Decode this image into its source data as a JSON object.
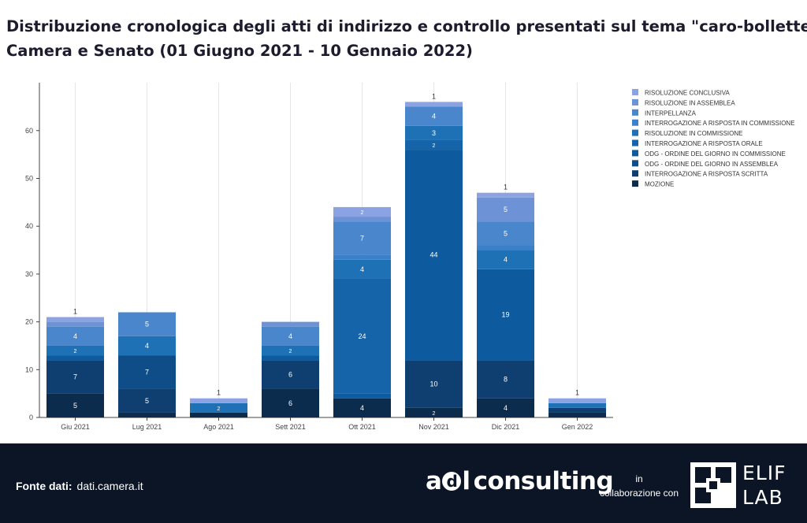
{
  "title": {
    "line1": "Distribuzione cronologica degli atti di indirizzo e controllo presentati sul tema \"caro-bollette\"",
    "line2": "Camera e Senato (01 Giugno 2021 - 10 Gennaio 2022)"
  },
  "footer": {
    "source_label": "Fonte dati:",
    "source_value": "dati.camera.it",
    "brand_a": "a",
    "brand_d": "d",
    "brand_l": "l",
    "brand_rest": "consulting",
    "collab_line1": "in",
    "collab_line2": "collaborazione con",
    "partner_line1": "ELIF",
    "partner_line2": "LAB"
  },
  "chart_data": {
    "type": "bar",
    "stacked": true,
    "categories": [
      "Giu 2021",
      "Lug 2021",
      "Ago 2021",
      "Sett 2021",
      "Ott 2021",
      "Nov 2021",
      "Dic 2021",
      "Gen 2022"
    ],
    "ylim": [
      0,
      70
    ],
    "yticks": [
      0,
      10,
      20,
      30,
      40,
      50,
      60
    ],
    "grid": "vertical",
    "legend_position": "top-right",
    "series": [
      {
        "name": "MOZIONE",
        "color": "#0b2c4d",
        "values": [
          5,
          1,
          1,
          6,
          4,
          2,
          4,
          1
        ]
      },
      {
        "name": "INTERROGAZIONE A RISPOSTA SCRITTA",
        "color": "#0e3f70",
        "values": [
          7,
          5,
          0,
          6,
          0,
          10,
          8,
          1
        ]
      },
      {
        "name": "ODG - ORDINE DEL GIORNO IN ASSEMBLEA",
        "color": "#0f4d88",
        "values": [
          0,
          7,
          0,
          0,
          0,
          0,
          0,
          0
        ]
      },
      {
        "name": "ODG - ORDINE DEL GIORNO IN COMMISSIONE",
        "color": "#0d5a9e",
        "values": [
          1,
          0,
          0,
          1,
          1,
          44,
          19,
          0
        ]
      },
      {
        "name": "INTERROGAZIONE A RISPOSTA ORALE",
        "color": "#1564a9",
        "values": [
          0,
          0,
          0,
          0,
          24,
          2,
          0,
          0
        ]
      },
      {
        "name": "RISOLUZIONE IN COMMISSIONE",
        "color": "#1f71b6",
        "values": [
          2,
          4,
          2,
          2,
          4,
          3,
          4,
          1
        ]
      },
      {
        "name": "INTERROGAZIONE A RISPOSTA IN COMMISSIONE",
        "color": "#3b80c8",
        "values": [
          0,
          0,
          0,
          0,
          1,
          0,
          1,
          0
        ]
      },
      {
        "name": "INTERPELLANZA",
        "color": "#4a86cc",
        "values": [
          4,
          5,
          0,
          4,
          7,
          4,
          5,
          0
        ]
      },
      {
        "name": "RISOLUZIONE IN ASSEMBLEA",
        "color": "#6d93d6",
        "values": [
          1,
          0,
          0,
          1,
          1,
          0,
          5,
          0
        ]
      },
      {
        "name": "RISOLUZIONE CONCLUSIVA",
        "color": "#8ba3e2",
        "values": [
          1,
          0,
          1,
          0,
          2,
          1,
          1,
          1
        ]
      }
    ],
    "data_labels": [
      {
        "category": 0,
        "series": 0,
        "text": "5"
      },
      {
        "category": 0,
        "series": 1,
        "text": "7"
      },
      {
        "category": 0,
        "series": 5,
        "text": "2"
      },
      {
        "category": 0,
        "series": 7,
        "text": "4"
      },
      {
        "category": 0,
        "series": 9,
        "text": "1"
      },
      {
        "category": 1,
        "series": 1,
        "text": "5"
      },
      {
        "category": 1,
        "series": 2,
        "text": "7"
      },
      {
        "category": 1,
        "series": 5,
        "text": "4"
      },
      {
        "category": 1,
        "series": 7,
        "text": "5"
      },
      {
        "category": 2,
        "series": 5,
        "text": "2"
      },
      {
        "category": 2,
        "series": 9,
        "text": "1"
      },
      {
        "category": 3,
        "series": 0,
        "text": "6"
      },
      {
        "category": 3,
        "series": 1,
        "text": "6"
      },
      {
        "category": 3,
        "series": 5,
        "text": "2"
      },
      {
        "category": 3,
        "series": 7,
        "text": "4"
      },
      {
        "category": 4,
        "series": 0,
        "text": "4"
      },
      {
        "category": 4,
        "series": 4,
        "text": "24"
      },
      {
        "category": 4,
        "series": 5,
        "text": "4"
      },
      {
        "category": 4,
        "series": 7,
        "text": "7"
      },
      {
        "category": 4,
        "series": 9,
        "text": "2"
      },
      {
        "category": 5,
        "series": 0,
        "text": "2"
      },
      {
        "category": 5,
        "series": 1,
        "text": "10"
      },
      {
        "category": 5,
        "series": 3,
        "text": "44"
      },
      {
        "category": 5,
        "series": 4,
        "text": "2"
      },
      {
        "category": 5,
        "series": 5,
        "text": "3"
      },
      {
        "category": 5,
        "series": 7,
        "text": "4"
      },
      {
        "category": 5,
        "series": 9,
        "text": "1"
      },
      {
        "category": 6,
        "series": 0,
        "text": "4"
      },
      {
        "category": 6,
        "series": 1,
        "text": "8"
      },
      {
        "category": 6,
        "series": 3,
        "text": "19"
      },
      {
        "category": 6,
        "series": 5,
        "text": "4"
      },
      {
        "category": 6,
        "series": 7,
        "text": "5"
      },
      {
        "category": 6,
        "series": 8,
        "text": "5"
      },
      {
        "category": 6,
        "series": 9,
        "text": "1"
      },
      {
        "category": 7,
        "series": 9,
        "text": "1"
      }
    ]
  }
}
